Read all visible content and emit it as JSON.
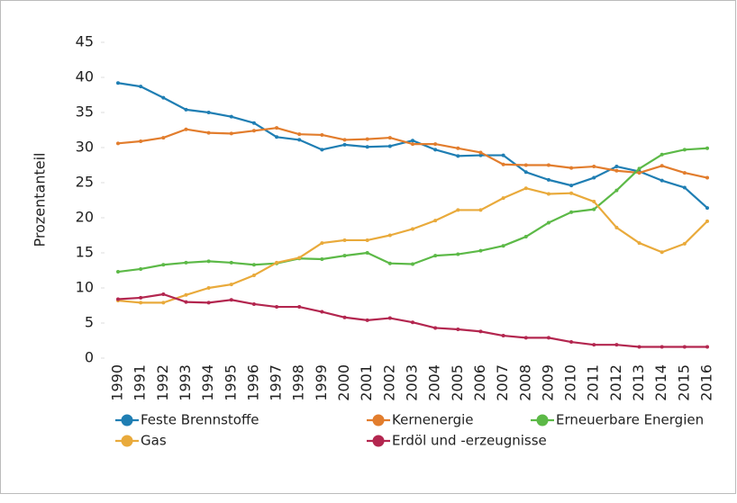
{
  "chart_data": {
    "type": "line",
    "y_label": "Prozentanteil",
    "categories": [
      1990,
      1991,
      1992,
      1993,
      1994,
      1995,
      1996,
      1997,
      1998,
      1999,
      2000,
      2001,
      2002,
      2003,
      2004,
      2005,
      2006,
      2007,
      2008,
      2009,
      2010,
      2011,
      2012,
      2013,
      2014,
      2015,
      2016
    ],
    "series": [
      {
        "name": "Feste Brennstoffe",
        "color": "#1f7eb3",
        "values": [
          39.2,
          38.7,
          37.1,
          35.4,
          35.0,
          34.4,
          33.5,
          31.5,
          31.1,
          29.7,
          30.4,
          30.1,
          30.2,
          31.0,
          29.7,
          28.8,
          28.9,
          28.9,
          26.5,
          25.4,
          24.6,
          25.7,
          27.3,
          26.6,
          25.3,
          24.3,
          21.4
        ]
      },
      {
        "name": "Kernenergie",
        "color": "#e27d2d",
        "values": [
          30.6,
          30.9,
          31.4,
          32.6,
          32.1,
          32.0,
          32.4,
          32.8,
          31.9,
          31.8,
          31.1,
          31.2,
          31.4,
          30.5,
          30.5,
          29.9,
          29.3,
          27.6,
          27.5,
          27.5,
          27.1,
          27.3,
          26.7,
          26.4,
          27.4,
          26.4,
          25.7
        ]
      },
      {
        "name": "Erneuerbare Energien",
        "color": "#5cb947",
        "values": [
          12.3,
          12.7,
          13.3,
          13.6,
          13.8,
          13.6,
          13.3,
          13.5,
          14.2,
          14.1,
          14.6,
          15.0,
          13.5,
          13.4,
          14.6,
          14.8,
          15.3,
          16.0,
          17.3,
          19.3,
          20.8,
          21.2,
          23.9,
          27.0,
          29.0,
          29.7,
          29.9
        ]
      },
      {
        "name": "Gas",
        "color": "#e9aa3b",
        "values": [
          8.2,
          7.9,
          7.9,
          9.0,
          10.0,
          10.5,
          11.8,
          13.6,
          14.3,
          16.4,
          16.8,
          16.8,
          17.5,
          18.4,
          19.6,
          21.1,
          21.1,
          22.8,
          24.2,
          23.4,
          23.5,
          22.3,
          18.6,
          16.4,
          15.1,
          16.3,
          19.5
        ]
      },
      {
        "name": "Erdöl und -erzeugnisse",
        "color": "#b3264f",
        "values": [
          8.4,
          8.6,
          9.1,
          8.0,
          7.9,
          8.3,
          7.7,
          7.3,
          7.3,
          6.6,
          5.8,
          5.4,
          5.7,
          5.1,
          4.3,
          4.1,
          3.8,
          3.2,
          2.9,
          2.9,
          2.3,
          1.9,
          1.9,
          1.6,
          1.6,
          1.6,
          1.6
        ]
      }
    ],
    "ylim": [
      0,
      45
    ],
    "yticks": [
      0,
      5,
      10,
      15,
      20,
      25,
      30,
      35,
      40,
      45
    ],
    "grid": false
  }
}
